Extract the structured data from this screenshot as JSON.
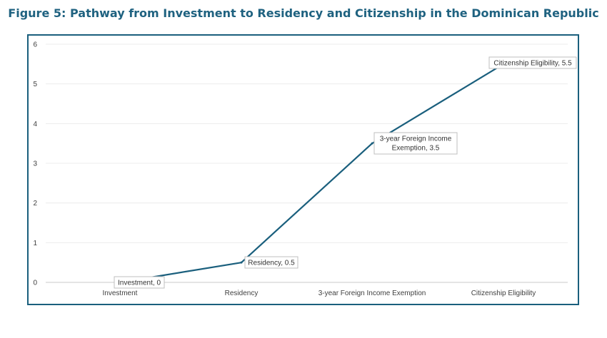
{
  "chart_data": {
    "type": "line",
    "title": "Figure 5: Pathway from Investment to Residency and Citizenship in the Dominican Republic",
    "categories": [
      "Investment",
      "Residency",
      "3-year Foreign Income Exemption",
      "Citizenship Eligibility"
    ],
    "values": [
      0,
      0.5,
      3.5,
      5.5
    ],
    "data_labels": [
      [
        "Investment, 0"
      ],
      [
        "Residency, 0.5"
      ],
      [
        "3-year Foreign Income",
        "Exemption, 3.5"
      ],
      [
        "Citizenship Eligibility, 5.5"
      ]
    ],
    "ylim": [
      0,
      6
    ],
    "yticks": [
      "0",
      "1",
      "2",
      "3",
      "4",
      "5",
      "6"
    ],
    "xlabel": "",
    "ylabel": "",
    "grid": true,
    "line_color": "#1a5f7d"
  }
}
